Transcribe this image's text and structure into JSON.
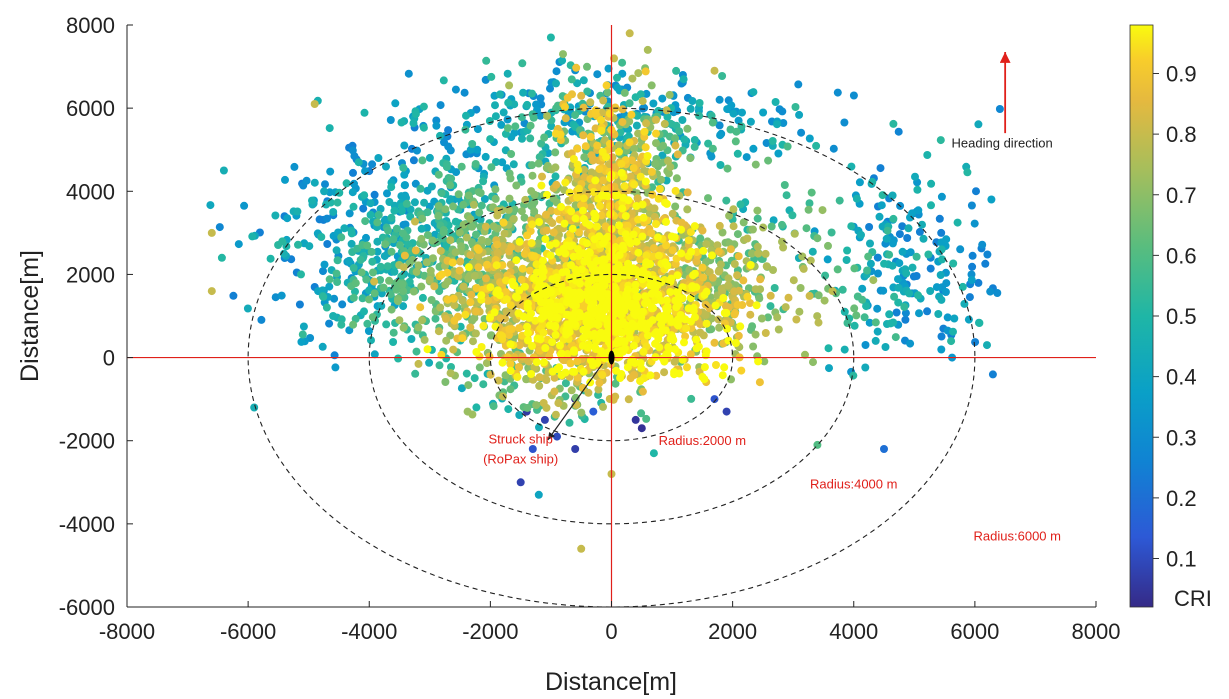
{
  "chart_data": {
    "type": "scatter",
    "xlabel": "Distance[m]",
    "ylabel": "Distance[m]",
    "xlim": [
      -8000,
      8000
    ],
    "ylim": [
      -6000,
      8000
    ],
    "x_ticks": [
      "-8000",
      "-6000",
      "-4000",
      "-2000",
      "0",
      "2000",
      "4000",
      "6000",
      "8000"
    ],
    "y_ticks": [
      "8000",
      "6000",
      "4000",
      "2000",
      "0",
      "-2000",
      "-4000",
      "-6000"
    ],
    "x_tick_values": [
      -8000,
      -6000,
      -4000,
      -2000,
      0,
      2000,
      4000,
      6000,
      8000
    ],
    "y_tick_values": [
      8000,
      6000,
      4000,
      2000,
      0,
      -2000,
      -4000,
      -6000
    ],
    "grid": false,
    "colormap": "parula",
    "color_range": [
      0.02,
      0.98
    ],
    "colorbar": {
      "label": "CRI",
      "ticks": [
        "0.9",
        "0.8",
        "0.7",
        "0.6",
        "0.5",
        "0.4",
        "0.3",
        "0.2",
        "0.1"
      ],
      "tick_values": [
        0.9,
        0.8,
        0.7,
        0.6,
        0.5,
        0.4,
        0.3,
        0.2,
        0.1
      ]
    },
    "points_note_hidden": true,
    "clusters": [
      {
        "cx": 0,
        "cy": 1200,
        "sx": 900,
        "sy": 900,
        "n": 900,
        "cri": [
          0.85,
          0.98
        ]
      },
      {
        "cx": 0,
        "cy": 3600,
        "sx": 500,
        "sy": 1400,
        "n": 700,
        "cri": [
          0.75,
          0.95
        ]
      },
      {
        "cx": -2800,
        "cy": 2600,
        "sx": 1300,
        "sy": 1200,
        "n": 900,
        "cri": [
          0.35,
          0.9
        ]
      },
      {
        "cx": -1200,
        "cy": 1500,
        "sx": 900,
        "sy": 900,
        "n": 600,
        "cri": [
          0.6,
          0.95
        ]
      },
      {
        "cx": 1500,
        "cy": 1800,
        "sx": 900,
        "sy": 1000,
        "n": 450,
        "cri": [
          0.5,
          0.9
        ]
      },
      {
        "cx": 4800,
        "cy": 2200,
        "sx": 800,
        "sy": 1300,
        "n": 230,
        "cri": [
          0.35,
          0.85
        ]
      },
      {
        "cx": 0,
        "cy": 5600,
        "sx": 1600,
        "sy": 700,
        "n": 350,
        "cri": [
          0.4,
          0.9
        ]
      },
      {
        "cx": -1000,
        "cy": -700,
        "sx": 900,
        "sy": 500,
        "n": 120,
        "cri": [
          0.35,
          0.85
        ]
      }
    ],
    "sparse_points": [
      {
        "x": -1400,
        "y": -1300,
        "cri": 0.06
      },
      {
        "x": -1100,
        "y": -1500,
        "cri": 0.08
      },
      {
        "x": -900,
        "y": -1900,
        "cri": 0.1
      },
      {
        "x": -600,
        "y": -2200,
        "cri": 0.07
      },
      {
        "x": -1300,
        "y": -2200,
        "cri": 0.12
      },
      {
        "x": -300,
        "y": -1300,
        "cri": 0.15
      },
      {
        "x": 400,
        "y": -1500,
        "cri": 0.05
      },
      {
        "x": 500,
        "y": -1700,
        "cri": 0.04
      },
      {
        "x": 1900,
        "y": -1300,
        "cri": 0.08
      },
      {
        "x": 1700,
        "y": -1000,
        "cri": 0.12
      },
      {
        "x": -1500,
        "y": -3000,
        "cri": 0.08
      },
      {
        "x": -1200,
        "y": -3300,
        "cri": 0.4
      },
      {
        "x": 4500,
        "y": -2200,
        "cri": 0.2
      },
      {
        "x": 3400,
        "y": -2100,
        "cri": 0.6
      },
      {
        "x": -500,
        "y": -4600,
        "cri": 0.8
      },
      {
        "x": -600,
        "y": -1000,
        "cri": 0.03
      },
      {
        "x": 700,
        "y": -2300,
        "cri": 0.5
      },
      {
        "x": 0,
        "y": -2800,
        "cri": 0.8
      },
      {
        "x": 300,
        "y": 7800,
        "cri": 0.8
      },
      {
        "x": -1000,
        "y": 7700,
        "cri": 0.5
      },
      {
        "x": -800,
        "y": 7300,
        "cri": 0.7
      },
      {
        "x": 600,
        "y": 7400,
        "cri": 0.75
      },
      {
        "x": -6600,
        "y": 3000,
        "cri": 0.8
      },
      {
        "x": -6400,
        "y": 4500,
        "cri": 0.45
      },
      {
        "x": -6600,
        "y": 1600,
        "cri": 0.8
      },
      {
        "x": -5900,
        "y": -1200,
        "cri": 0.45
      },
      {
        "x": 6200,
        "y": 300,
        "cri": 0.45
      },
      {
        "x": 5800,
        "y": 1700,
        "cri": 0.5
      },
      {
        "x": 1700,
        "y": 6900,
        "cri": 0.8
      },
      {
        "x": -4900,
        "y": 6100,
        "cri": 0.8
      }
    ],
    "circles": [
      {
        "radius_x": 2000,
        "radius_y": 2000,
        "label": "Radius:2000 m"
      },
      {
        "radius_x": 4000,
        "radius_y": 4000,
        "label": "Radius:4000 m"
      },
      {
        "radius_x": 6000,
        "radius_y": 6000,
        "label": "Radius:6000 m"
      }
    ],
    "annotations": {
      "heading": "Heading direction",
      "struck_ship_line1": "Struck ship",
      "struck_ship_line2": "(RoPax ship)"
    },
    "colors": {
      "axis_lines": "#e0201a",
      "annotation_text": "#e0201a",
      "circles": "#222222"
    }
  }
}
